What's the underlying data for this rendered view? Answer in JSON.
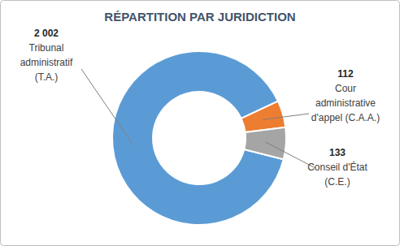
{
  "chart_data": {
    "type": "pie",
    "title": "RÉPARTITION PAR JURIDICTION",
    "categories": [
      "Tribunal\nadministratif\n(T.A.)",
      "Cour\nadministrative\nd'appel (C.A.A.)",
      "Conseil d'État\n(C.E.)"
    ],
    "values": [
      2002,
      112,
      133
    ],
    "value_labels": [
      "2 002",
      "112",
      "133"
    ],
    "colors": [
      "#5b9bd5",
      "#ed7d31",
      "#a5a5a5"
    ],
    "data_labels": true
  }
}
